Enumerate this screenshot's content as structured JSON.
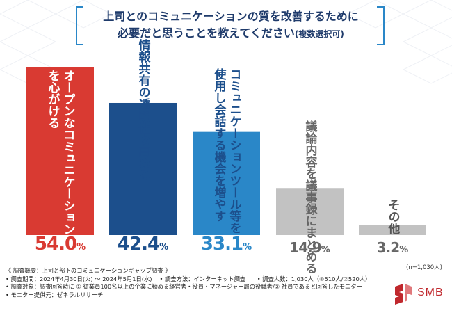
{
  "title": {
    "line1": "上司とのコミュニケーションの質を改善するために",
    "line2": "必要だと思うことを教えてください",
    "line2_suffix": "(複数選択可)"
  },
  "chart_data": {
    "type": "bar",
    "title": "上司とのコミュニケーションの質を改善するために必要だと思うことを教えてください(複数選択可)",
    "categories": [
      "オープンなコミュニケーションを心がける",
      "情報共有の透明性を高める",
      "コミュニケーションツール等を使用し会話する機会を増やす",
      "議論内容を議事録にまとめる",
      "その他"
    ],
    "values": [
      54.0,
      42.4,
      33.1,
      14.9,
      3.2
    ],
    "value_labels": [
      "54.0",
      "42.4",
      "33.1",
      "14.9",
      "3.2"
    ],
    "label_columns": [
      [
        "オープンなコミュニケーション",
        "を心がける"
      ],
      [
        "情報共有の透明性を高める"
      ],
      [
        "コミュニケーションツール等を",
        "使用し会話する機会を増やす"
      ],
      [
        "議論内容を議事録にまとめる"
      ],
      [
        "その他"
      ]
    ],
    "unit": "%",
    "ylim": [
      0,
      60
    ],
    "colors": [
      "#d93a32",
      "#1c4f8c",
      "#2a87c8",
      "#c2c2c2",
      "#c2c2c2"
    ],
    "label_colors": [
      "#ffffff",
      "#1c4f8c",
      "#1c4f8c",
      "#666666",
      "#555555"
    ],
    "pct_colors": [
      "#d93a32",
      "#1c4f8c",
      "#2a87c8",
      "#666666",
      "#666666"
    ],
    "xlabel": "",
    "ylabel": "",
    "grid": false
  },
  "sample_note": "(n=1,030人)",
  "footer": {
    "line1": "《 調査概要：上司と部下のコミュニケーションギャップ調査 》",
    "line2": "• 調査期間：2024年4月30日(火) ～ 2024年5月1日(水)　 • 調査方法：インターネット調査　　• 調査人数：1,030人（①510人/②520人）",
    "line3": "• 調査対象：調査回答時に ① 従業員100名以上の企業に勤める経営者・役員・マネージャー層の役職者/② 社員であると回答したモニター",
    "line4": "• モニター提供元：ゼネラルリサーチ"
  },
  "logo": {
    "text": "SMB",
    "color": "#c0282d"
  }
}
